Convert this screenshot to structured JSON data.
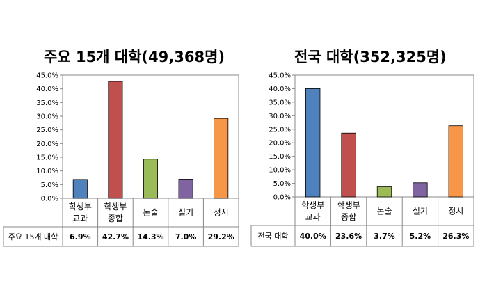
{
  "chart_data": [
    {
      "type": "bar",
      "title": "주요 15개 대학(49,368명)",
      "categories": [
        [
          "학생부",
          "교과"
        ],
        [
          "학생부",
          "종합"
        ],
        [
          "논술"
        ],
        [
          "실기"
        ],
        [
          "정시"
        ]
      ],
      "values": [
        6.9,
        42.7,
        14.3,
        7.0,
        29.2
      ],
      "value_labels": [
        "6.9%",
        "42.7%",
        "14.3%",
        "7.0%",
        "29.2%"
      ],
      "row_label": "주요 15개 대학",
      "colors": [
        "#4f81bd",
        "#c0504d",
        "#9bbb59",
        "#8064a2",
        "#f79646"
      ],
      "yticks": [
        "0.0%",
        "5.0%",
        "10.0%",
        "15.0%",
        "20.0%",
        "25.0%",
        "30.0%",
        "35.0%",
        "40.0%",
        "45.0%"
      ],
      "ylim": [
        0,
        45
      ],
      "grid": false,
      "legend": "none"
    },
    {
      "type": "bar",
      "title": "전국 대학(352,325명)",
      "categories": [
        [
          "학생부",
          "교과"
        ],
        [
          "학생부",
          "종합"
        ],
        [
          "논술"
        ],
        [
          "실기"
        ],
        [
          "정시"
        ]
      ],
      "values": [
        40.0,
        23.6,
        3.7,
        5.2,
        26.3
      ],
      "value_labels": [
        "40.0%",
        "23.6%",
        "3.7%",
        "5.2%",
        "26.3%"
      ],
      "row_label": "전국 대학",
      "colors": [
        "#4f81bd",
        "#c0504d",
        "#9bbb59",
        "#8064a2",
        "#f79646"
      ],
      "yticks": [
        "0.0%",
        "5.0%",
        "10.0%",
        "15.0%",
        "20.0%",
        "25.0%",
        "30.0%",
        "35.0%",
        "40.0%",
        "45.0%"
      ],
      "ylim": [
        0,
        45
      ],
      "grid": false,
      "legend": "none"
    }
  ]
}
